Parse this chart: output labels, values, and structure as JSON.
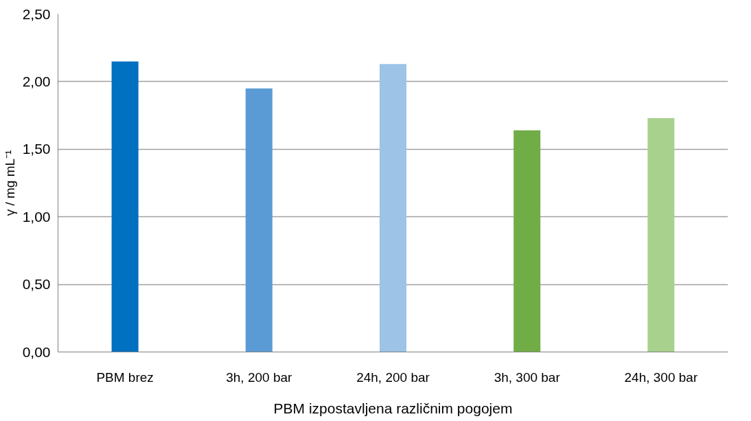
{
  "chart_data": {
    "type": "bar",
    "xlabel": "PBM izpostavljena različnim pogojem",
    "ylabel": "γ / mg mL⁻¹",
    "categories": [
      "PBM brez",
      "3h, 200 bar",
      "24h, 200 bar",
      "3h, 300 bar",
      "24h, 300 bar"
    ],
    "values": [
      2.15,
      1.95,
      2.13,
      1.64,
      1.73
    ],
    "colors": [
      "#0070c0",
      "#5b9bd5",
      "#9dc3e6",
      "#70ad47",
      "#a9d18e"
    ],
    "ylim": [
      0,
      2.5
    ],
    "yticks": [
      {
        "value": 0,
        "label": "0,00"
      },
      {
        "value": 0.5,
        "label": "0,50"
      },
      {
        "value": 1,
        "label": "1,00"
      },
      {
        "value": 1.5,
        "label": "1,50"
      },
      {
        "value": 2,
        "label": "2,00"
      },
      {
        "value": 2.5,
        "label": "2,50"
      }
    ],
    "grid": "y"
  }
}
